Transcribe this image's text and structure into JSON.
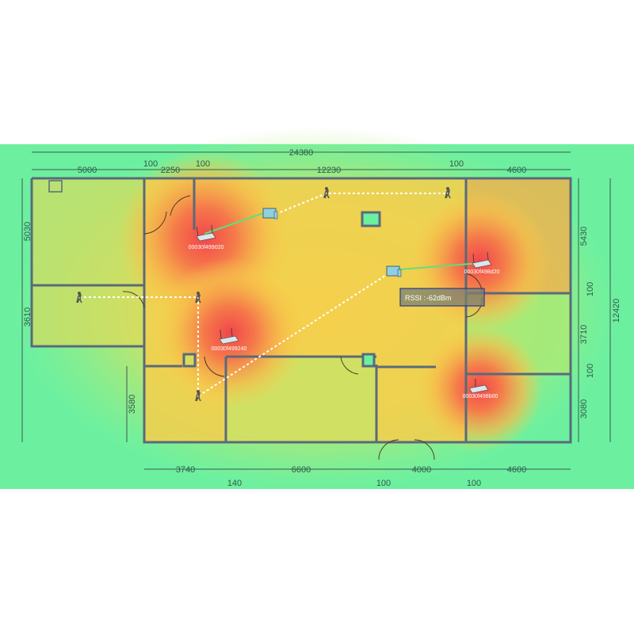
{
  "dimensions": {
    "top_total": "24380",
    "top": [
      "5000",
      "100",
      "2250",
      "100",
      "12230",
      "100",
      "4600"
    ],
    "right_total": "12420",
    "right": [
      "5430",
      "100",
      "3710",
      "100",
      "3080"
    ],
    "left": [
      "5030",
      "3610",
      "3580"
    ],
    "bottom": [
      "3740",
      "140",
      "6600",
      "100",
      "4000",
      "100",
      "4600"
    ]
  },
  "access_points": [
    {
      "id": "00030f499020"
    },
    {
      "id": "00030f498d20"
    },
    {
      "id": "00030f499240"
    },
    {
      "id": "00030f498b00"
    }
  ],
  "tooltip": {
    "label": "RSSI :",
    "value": "-62dBm"
  },
  "colors": {
    "strong": "#f25a4a",
    "medium": "#f7cf4a",
    "weak": "#6cf0a0",
    "path": "#ffffff",
    "link": "#5fe07a"
  }
}
